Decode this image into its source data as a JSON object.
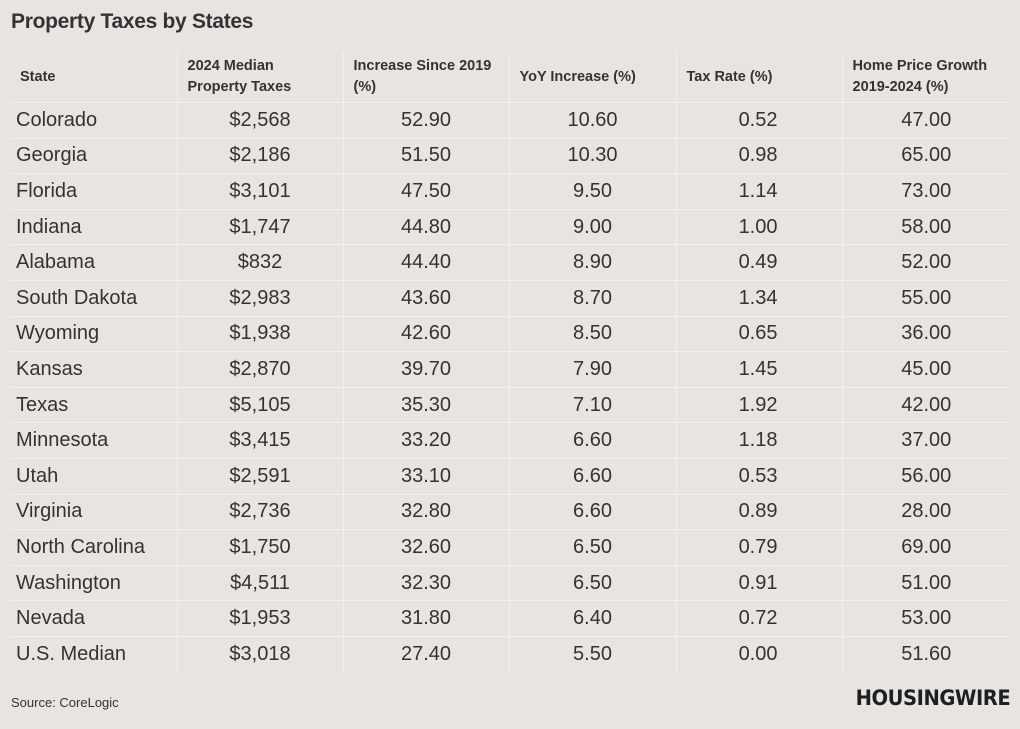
{
  "title": "Property Taxes by States",
  "source": "Source: CoreLogic",
  "brand": "HOUSINGWIRE",
  "chart_data": {
    "type": "table",
    "title": "Property Taxes by States",
    "columns": [
      "State",
      "2024 Median Property Taxes",
      "Increase Since 2019 (%)",
      "YoY Increase (%)",
      "Tax Rate (%)",
      "Home Price Growth 2019-2024 (%)"
    ],
    "rows": [
      [
        "Colorado",
        "$2,568",
        "52.90",
        "10.60",
        "0.52",
        "47.00"
      ],
      [
        "Georgia",
        "$2,186",
        "51.50",
        "10.30",
        "0.98",
        "65.00"
      ],
      [
        "Florida",
        "$3,101",
        "47.50",
        "9.50",
        "1.14",
        "73.00"
      ],
      [
        "Indiana",
        "$1,747",
        "44.80",
        "9.00",
        "1.00",
        "58.00"
      ],
      [
        "Alabama",
        "$832",
        "44.40",
        "8.90",
        "0.49",
        "52.00"
      ],
      [
        "South Dakota",
        "$2,983",
        "43.60",
        "8.70",
        "1.34",
        "55.00"
      ],
      [
        "Wyoming",
        "$1,938",
        "42.60",
        "8.50",
        "0.65",
        "36.00"
      ],
      [
        "Kansas",
        "$2,870",
        "39.70",
        "7.90",
        "1.45",
        "45.00"
      ],
      [
        "Texas",
        "$5,105",
        "35.30",
        "7.10",
        "1.92",
        "42.00"
      ],
      [
        "Minnesota",
        "$3,415",
        "33.20",
        "6.60",
        "1.18",
        "37.00"
      ],
      [
        "Utah",
        "$2,591",
        "33.10",
        "6.60",
        "0.53",
        "56.00"
      ],
      [
        "Virginia",
        "$2,736",
        "32.80",
        "6.60",
        "0.89",
        "28.00"
      ],
      [
        "North Carolina",
        "$1,750",
        "32.60",
        "6.50",
        "0.79",
        "69.00"
      ],
      [
        "Washington",
        "$4,511",
        "32.30",
        "6.50",
        "0.91",
        "51.00"
      ],
      [
        "Nevada",
        "$1,953",
        "31.80",
        "6.40",
        "0.72",
        "53.00"
      ],
      [
        "U.S. Median",
        "$3,018",
        "27.40",
        "5.50",
        "0.00",
        "51.60"
      ]
    ]
  }
}
